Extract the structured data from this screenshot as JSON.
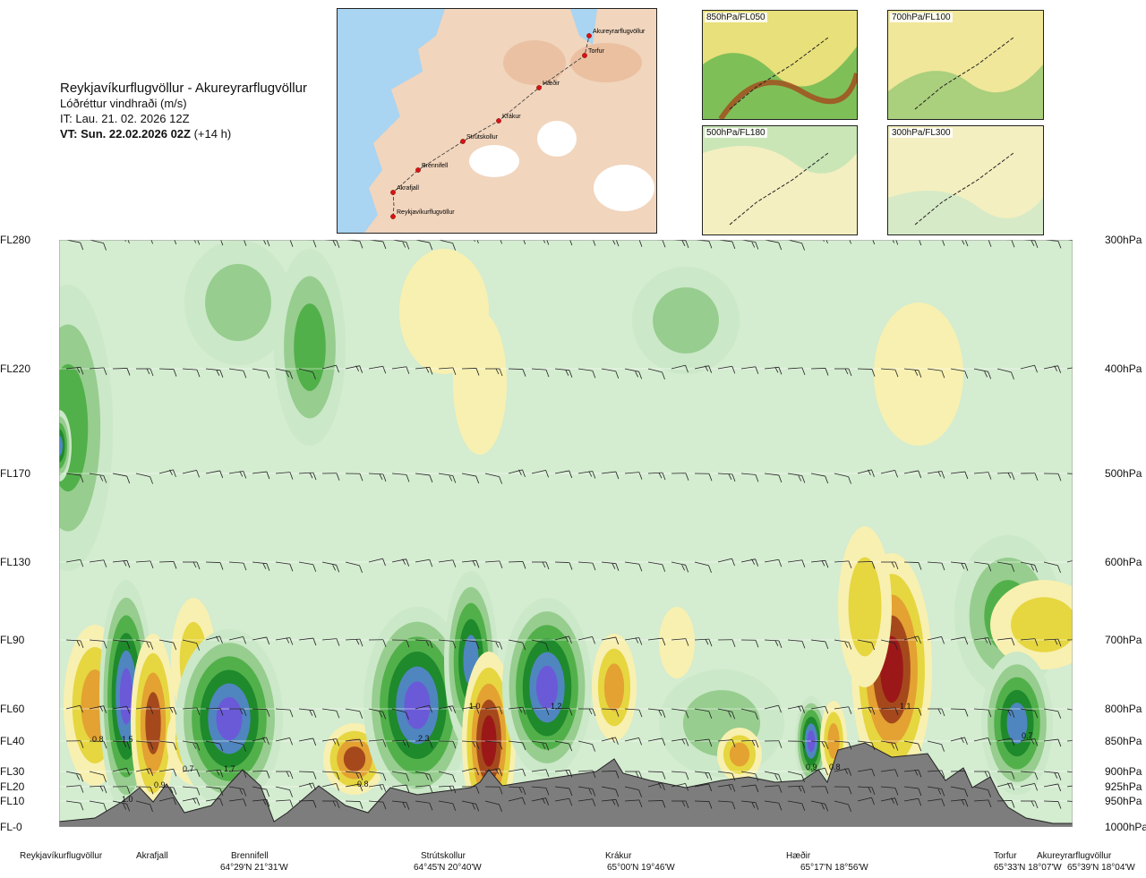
{
  "header": {
    "route": "Reykjavíkurflugvöllur - Akureyrarflugvöllur",
    "subtitle": "Lóðréttur vindhraði (m/s)",
    "issue_time": "IT: Lau. 21. 02. 2026 12Z",
    "valid_prefix": "VT: Sun. 22.02.2026 02Z",
    "valid_suffix": "(+14 h)"
  },
  "map": {
    "places": [
      "Akureyrarflugvöllur",
      "Torfur",
      "Hæðir",
      "Krákur",
      "Strútskollur",
      "Brennifell",
      "Akrafjall",
      "Reykjavíkurflugvöllur"
    ]
  },
  "minimaps": [
    {
      "label": "850hPa/FL050"
    },
    {
      "label": "700hPa/FL100"
    },
    {
      "label": "500hPa/FL180"
    },
    {
      "label": "300hPa/FL300"
    }
  ],
  "colors": {
    "strong_down": "#6a5ad8",
    "down_blue": "#4f86c0",
    "down_dark_green": "#1e8a2c",
    "down_green": "#52b04a",
    "down_mid": "#97cd8f",
    "down_light": "#cbe8c8",
    "up_light": "#f8f0b0",
    "up_yellow": "#e6d640",
    "up_orange": "#e3a232",
    "up_brown": "#a5491c",
    "strong_up": "#9c1818",
    "terrain": "#7d7d7d"
  },
  "chart_data": {
    "type": "heatmap",
    "y_levels": [
      {
        "fl": "FL280",
        "hpa": "300hPa"
      },
      {
        "fl": "FL220",
        "hpa": "400hPa"
      },
      {
        "fl": "FL170",
        "hpa": "500hPa"
      },
      {
        "fl": "FL130",
        "hpa": "600hPa"
      },
      {
        "fl": "FL90",
        "hpa": "700hPa"
      },
      {
        "fl": "FL60",
        "hpa": "800hPa"
      },
      {
        "fl": "FL40",
        "hpa": "850hPa"
      },
      {
        "fl": "FL30",
        "hpa": "900hPa"
      },
      {
        "fl": "FL20",
        "hpa": "925hPa"
      },
      {
        "fl": "FL10",
        "hpa": "950hPa"
      },
      {
        "fl": "FL-0",
        "hpa": "1000hPa"
      }
    ],
    "locations": [
      {
        "name": "Reykjavíkurflugvöllur",
        "coord": ""
      },
      {
        "name": "Akrafjall",
        "coord": ""
      },
      {
        "name": "Brennifell",
        "coord": "64°29'N 21°31'W"
      },
      {
        "name": "Strútskollur",
        "coord": "64°45'N 20°40'W"
      },
      {
        "name": "Krákur",
        "coord": "65°00'N 19°46'W"
      },
      {
        "name": "Hæðir",
        "coord": "65°17'N 18°56'W"
      },
      {
        "name": "Torfur",
        "coord": "65°33'N 18°07'W"
      },
      {
        "name": "Akureyrarflugvöllur",
        "coord": "65°39'N 18°04'W"
      }
    ],
    "value_labels": [
      {
        "text": "0.8"
      },
      {
        "text": "1.5"
      },
      {
        "text": "1.0"
      },
      {
        "text": "0.9"
      },
      {
        "text": "0.7"
      },
      {
        "text": "1.7"
      },
      {
        "text": "0.8"
      },
      {
        "text": "2.3"
      },
      {
        "text": "1.0"
      },
      {
        "text": "1.2"
      },
      {
        "text": "0.9"
      },
      {
        "text": "0.8"
      },
      {
        "text": "1.1"
      },
      {
        "text": "0.7"
      }
    ]
  }
}
